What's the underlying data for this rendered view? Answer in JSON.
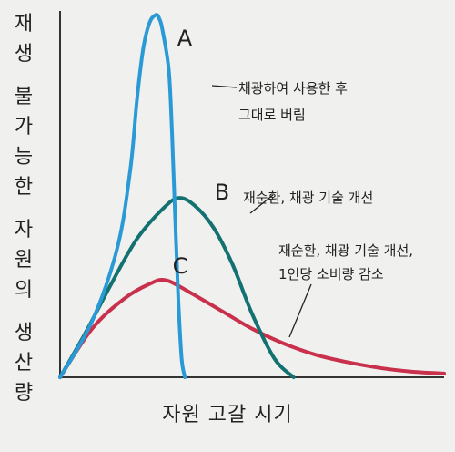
{
  "chart_data": {
    "type": "line",
    "xlabel": "자원 고갈 시기",
    "ylabel": "재생 불가능한 자원의 생산량",
    "x": [
      0,
      4,
      8,
      11,
      14,
      16,
      19,
      22,
      24,
      26,
      28,
      30,
      33,
      36,
      40,
      45,
      50,
      55,
      60,
      67,
      75,
      80,
      90,
      100,
      110,
      120
    ],
    "series": [
      {
        "name": "A",
        "annotation": "채광하여 사용한 후\n그대로 버림",
        "color": "#2a9ad6",
        "points": [
          [
            0,
            0
          ],
          [
            10,
            15
          ],
          [
            18,
            35
          ],
          [
            22,
            56
          ],
          [
            24,
            74
          ],
          [
            26,
            88
          ],
          [
            28,
            95
          ],
          [
            30,
            97
          ],
          [
            31,
            96
          ],
          [
            32,
            93
          ],
          [
            34,
            82
          ],
          [
            35,
            65
          ],
          [
            36,
            42
          ],
          [
            37,
            20
          ],
          [
            38,
            5
          ],
          [
            39,
            0
          ]
        ]
      },
      {
        "name": "B",
        "annotation": "재순환, 채광 기술 개선",
        "color": "#137271",
        "points": [
          [
            0,
            0
          ],
          [
            8,
            12
          ],
          [
            16,
            25
          ],
          [
            24,
            37
          ],
          [
            32,
            45
          ],
          [
            37,
            48
          ],
          [
            42,
            46
          ],
          [
            48,
            40
          ],
          [
            54,
            30
          ],
          [
            60,
            17
          ],
          [
            67,
            5
          ],
          [
            73,
            0
          ]
        ]
      },
      {
        "name": "C",
        "annotation": "재순환, 채광 기술 개선,\n1인당 소비량 감소",
        "color": "#c8304b",
        "points": [
          [
            0,
            0
          ],
          [
            10,
            13
          ],
          [
            20,
            21
          ],
          [
            28,
            25
          ],
          [
            33,
            26
          ],
          [
            40,
            23
          ],
          [
            50,
            18
          ],
          [
            60,
            13
          ],
          [
            70,
            9
          ],
          [
            80,
            6
          ],
          [
            90,
            4
          ],
          [
            100,
            2.5
          ],
          [
            110,
            1.5
          ],
          [
            120,
            1
          ]
        ]
      }
    ],
    "xlim": [
      0,
      120
    ],
    "ylim": [
      0,
      100
    ],
    "legend": "inline-annotations"
  }
}
